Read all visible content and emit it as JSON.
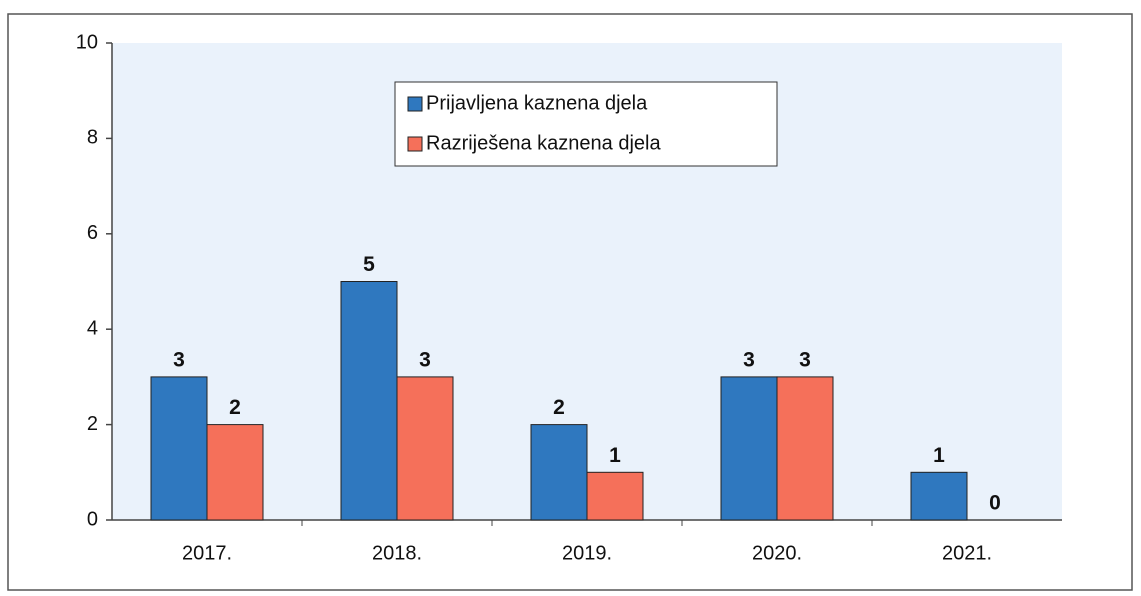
{
  "chart_data": {
    "type": "bar",
    "categories": [
      "2017.",
      "2018.",
      "2019.",
      "2020.",
      "2021."
    ],
    "series": [
      {
        "name": "Prijavljena kaznena djela",
        "color": "#2f78bf",
        "values": [
          3,
          5,
          2,
          3,
          1
        ]
      },
      {
        "name": "Razriješena kaznena djela",
        "color": "#f5705a",
        "values": [
          2,
          3,
          1,
          3,
          0
        ]
      }
    ],
    "ylim": [
      0,
      10
    ],
    "yticks": [
      0,
      2,
      4,
      6,
      8,
      10
    ],
    "legend": "top"
  }
}
